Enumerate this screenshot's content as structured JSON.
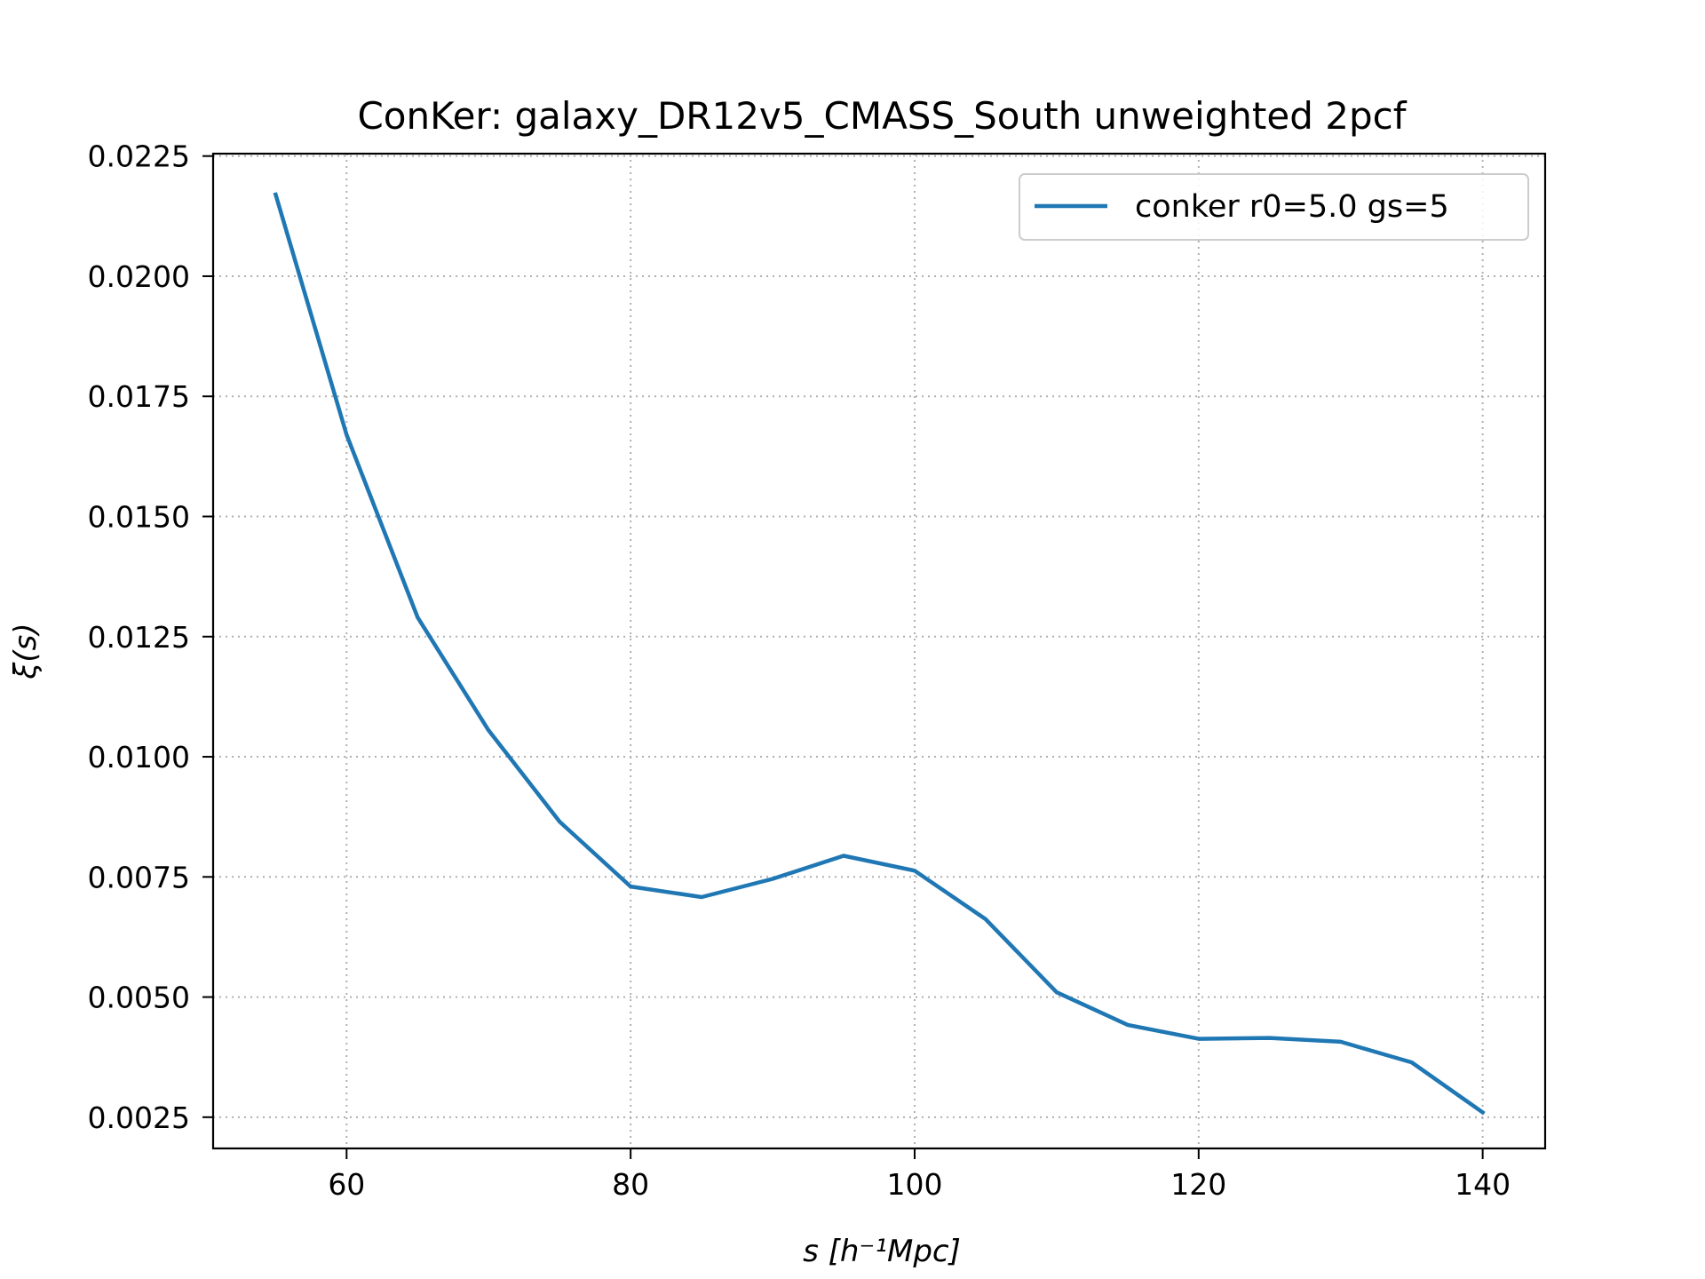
{
  "chart_data": {
    "type": "line",
    "title": "ConKer: galaxy_DR12v5_CMASS_South unweighted 2pcf",
    "xlabel": "s [h⁻¹Mpc]",
    "ylabel": "ξ(s)",
    "xlim": [
      50.6,
      144.4
    ],
    "ylim": [
      0.00185,
      0.02255
    ],
    "xticks": [
      60,
      80,
      100,
      120,
      140
    ],
    "xtick_labels": [
      "60",
      "80",
      "100",
      "120",
      "140"
    ],
    "yticks": [
      0.0025,
      0.005,
      0.0075,
      0.01,
      0.0125,
      0.015,
      0.0175,
      0.02,
      0.0225
    ],
    "ytick_labels": [
      "0.0025",
      "0.0050",
      "0.0075",
      "0.0100",
      "0.0125",
      "0.0150",
      "0.0175",
      "0.0200",
      "0.0225"
    ],
    "grid": true,
    "legend_position": "top-right",
    "series": [
      {
        "name": "conker r0=5.0 gs=5",
        "color": "#1f77b4",
        "x": [
          55,
          60,
          65,
          70,
          75,
          80,
          85,
          90,
          95,
          100,
          105,
          110,
          115,
          120,
          125,
          130,
          135,
          140
        ],
        "y": [
          0.0217,
          0.0167,
          0.0129,
          0.01055,
          0.00865,
          0.0073,
          0.00708,
          0.00746,
          0.00794,
          0.00763,
          0.00662,
          0.0051,
          0.00442,
          0.00413,
          0.00415,
          0.00407,
          0.00364,
          0.0026
        ]
      }
    ]
  }
}
